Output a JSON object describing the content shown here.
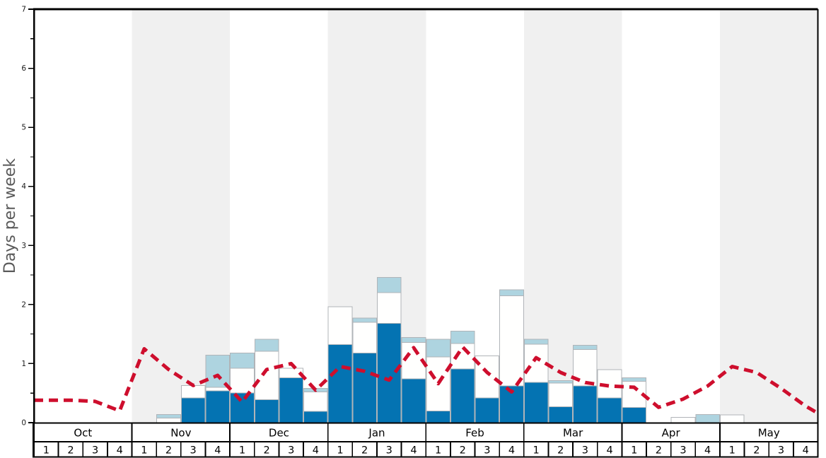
{
  "chart_data": {
    "type": "stacked-bar-with-line",
    "title": "",
    "ylabel": "Days per week",
    "xlabel": "",
    "ylim": [
      0,
      7
    ],
    "yticks": [
      "0",
      "1",
      "2",
      "3",
      "4",
      "5",
      "6",
      "7"
    ],
    "minor_tick_step": 0.5,
    "grid": false,
    "legend": "none",
    "months": [
      "Oct",
      "Nov",
      "Dec",
      "Jan",
      "Feb",
      "Mar",
      "Apr",
      "May"
    ],
    "week_labels": [
      "1",
      "2",
      "3",
      "4"
    ],
    "categories": [
      "Oct-1",
      "Oct-2",
      "Oct-3",
      "Oct-4",
      "Nov-1",
      "Nov-2",
      "Nov-3",
      "Nov-4",
      "Dec-1",
      "Dec-2",
      "Dec-3",
      "Dec-4",
      "Jan-1",
      "Jan-2",
      "Jan-3",
      "Jan-4",
      "Feb-1",
      "Feb-2",
      "Feb-3",
      "Feb-4",
      "Mar-1",
      "Mar-2",
      "Mar-3",
      "Mar-4",
      "Apr-1",
      "Apr-2",
      "Apr-3",
      "Apr-4",
      "May-1",
      "May-2",
      "May-3",
      "May-4"
    ],
    "series": [
      {
        "name": "dark-blue-segment",
        "color": "#0473b2",
        "values": [
          0,
          0,
          0,
          0,
          0,
          0,
          0.42,
          0.54,
          0.5,
          0.39,
          0.76,
          0.19,
          1.32,
          1.18,
          1.68,
          0.74,
          0.2,
          0.91,
          0.42,
          0.62,
          0.68,
          0.27,
          0.62,
          0.42,
          0.26,
          0,
          0,
          0,
          0,
          0,
          0,
          0
        ]
      },
      {
        "name": "white-segment",
        "color": "#fffffe",
        "values": [
          0,
          0,
          0,
          0,
          0,
          0.08,
          0.21,
          0.06,
          0.42,
          0.82,
          0.16,
          0.33,
          0.64,
          0.52,
          0.52,
          0.62,
          0.91,
          0.43,
          0.71,
          1.53,
          0.65,
          0.4,
          0.62,
          0.48,
          0.44,
          0,
          0.09,
          0,
          0.13,
          0,
          0,
          0
        ]
      },
      {
        "name": "light-blue-segment",
        "color": "#aed4e0",
        "values": [
          0,
          0,
          0,
          0,
          0,
          0.06,
          0,
          0.54,
          0.26,
          0.2,
          0,
          0.06,
          0,
          0.07,
          0.26,
          0.08,
          0.3,
          0.21,
          0,
          0.1,
          0.08,
          0.04,
          0.07,
          0,
          0.06,
          0,
          0,
          0.14,
          0,
          0,
          0,
          0
        ]
      }
    ],
    "line": {
      "name": "average-dashed-line",
      "color": "#ce0e2d",
      "style": "dashed",
      "edge_start": 0.38,
      "edge_end": 0.16,
      "values": [
        0.38,
        0.38,
        0.36,
        0.2,
        1.25,
        0.9,
        0.63,
        0.8,
        0.35,
        0.9,
        1.0,
        0.55,
        0.95,
        0.87,
        0.72,
        1.27,
        0.66,
        1.28,
        0.85,
        0.52,
        1.1,
        0.85,
        0.68,
        0.62,
        0.6,
        0.26,
        0.4,
        0.62,
        0.95,
        0.85,
        0.58,
        0.28
      ]
    },
    "shaded_month_indexes": [
      1,
      3,
      5,
      7
    ],
    "colors": {
      "band": "#f0f0f0",
      "bar_border": "#b0b4b8",
      "axis": "#000000",
      "table_border": "#000000",
      "table_bg": "#ffffff",
      "tick_text": "#1a1a1a",
      "ylabel_text": "#5a5a5a",
      "plot_bg": "#ffffff"
    }
  }
}
